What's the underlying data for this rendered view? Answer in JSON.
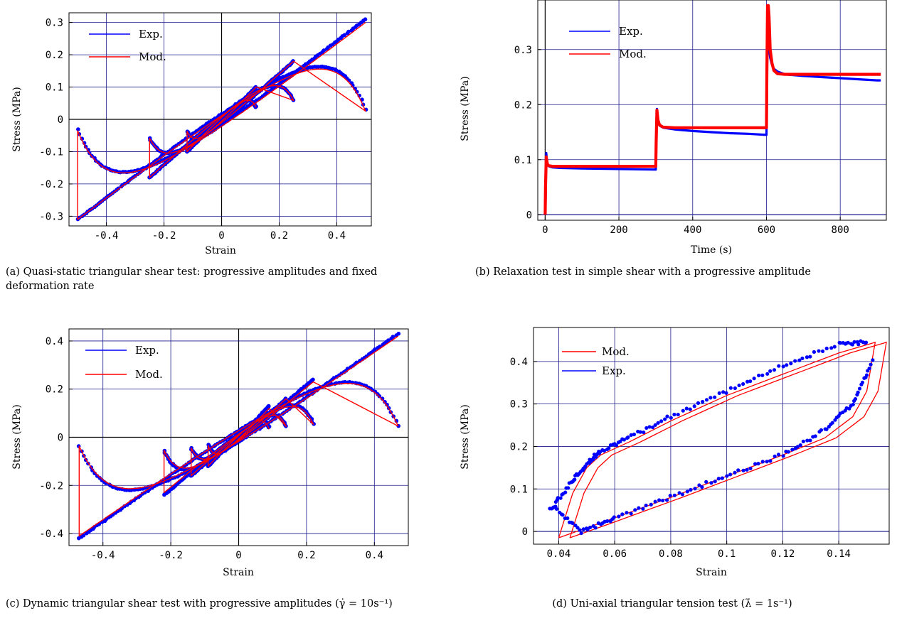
{
  "colors": {
    "experimental": "#0000ff",
    "model": "#ff0000",
    "grid": "#1a1a8c",
    "zero_line": "#000000"
  },
  "captions": {
    "a": "(a) Quasi-static triangular shear test: progressive amplitudes and fixed deformation rate",
    "b": "(b) Relaxation test in simple shear with a progressive amplitude",
    "c": "(c) Dynamic triangular shear test with progressive amplitudes (γ̇ = 10s⁻¹)",
    "d": "(d) Uni-axial triangular tension test (λ̇ = 1s⁻¹)"
  },
  "chart_data": [
    {
      "id": "a",
      "type": "scatter",
      "xlabel": "Strain",
      "ylabel": "Stress (MPa)",
      "xlim": [
        -0.53,
        0.52
      ],
      "ylim": [
        -0.33,
        0.33
      ],
      "xticks": [
        -0.4,
        -0.2,
        0,
        0.2,
        0.4
      ],
      "xtick_labels": [
        "-0.4",
        "-0.2",
        "0",
        "0.2",
        "0.4"
      ],
      "yticks": [
        -0.3,
        -0.2,
        -0.1,
        0,
        0.1,
        0.2,
        0.3
      ],
      "ytick_labels": [
        "-0.3",
        "-0.2",
        "-0.1",
        "0",
        "0.1",
        "0.2",
        "0.3"
      ],
      "grid": true,
      "legend_position": "top-left",
      "series": [
        {
          "name": "Exp.",
          "style": "points",
          "color": "#0000ff",
          "loops": [
            {
              "amp": 0.12,
              "ymax": 0.1,
              "ymin": -0.1,
              "xf": 0.0,
              "sf": 0.7
            },
            {
              "amp": 0.25,
              "ymax": 0.18,
              "ymin": -0.18,
              "xf": 0.04,
              "sf": 0.75
            },
            {
              "amp": 0.5,
              "ymax": 0.31,
              "ymin": -0.31,
              "xf": 0.05,
              "sf": 1.0
            }
          ]
        },
        {
          "name": "Mod.",
          "style": "line",
          "color": "#ff0000",
          "loops": [
            {
              "amp": 0.12,
              "ymax": 0.1,
              "ymin": -0.1,
              "xf": 0.0,
              "sf": 0.7
            },
            {
              "amp": 0.25,
              "ymax": 0.18,
              "ymin": -0.18,
              "xf": 0.04,
              "sf": 0.75
            },
            {
              "amp": 0.5,
              "ymax": 0.3,
              "ymin": -0.31,
              "xf": 0.05,
              "sf": 1.0
            }
          ]
        }
      ]
    },
    {
      "id": "b",
      "type": "line",
      "xlabel": "Time (s)",
      "ylabel": "Stress (MPa)",
      "xlim": [
        -20,
        925
      ],
      "ylim": [
        -0.01,
        0.39
      ],
      "xticks": [
        0,
        200,
        400,
        600,
        800
      ],
      "xtick_labels": [
        "0",
        "200",
        "400",
        "600",
        "800"
      ],
      "yticks": [
        0,
        0.1,
        0.2,
        0.3
      ],
      "ytick_labels": [
        "0",
        "0.1",
        "0.2",
        "0.3"
      ],
      "grid": true,
      "legend_position": "top-left",
      "series": [
        {
          "name": "Exp.",
          "style": "thick",
          "color": "#0000ff",
          "x": [
            0,
            1,
            3,
            5,
            10,
            20,
            40,
            100,
            200,
            300,
            301,
            303,
            306,
            310,
            320,
            350,
            400,
            450,
            500,
            550,
            600,
            601,
            603,
            606,
            610,
            615,
            620,
            630,
            650,
            700,
            750,
            800,
            850,
            900,
            910
          ],
          "y": [
            0.0,
            0.02,
            0.112,
            0.095,
            0.088,
            0.086,
            0.085,
            0.084,
            0.083,
            0.082,
            0.12,
            0.192,
            0.172,
            0.162,
            0.158,
            0.155,
            0.152,
            0.15,
            0.148,
            0.147,
            0.145,
            0.22,
            0.34,
            0.31,
            0.285,
            0.272,
            0.265,
            0.26,
            0.255,
            0.252,
            0.25,
            0.248,
            0.246,
            0.244,
            0.244
          ]
        },
        {
          "name": "Mod.",
          "style": "thick",
          "color": "#ff0000",
          "x": [
            0,
            1,
            3,
            6,
            10,
            20,
            100,
            200,
            300,
            301,
            303,
            306,
            310,
            320,
            350,
            400,
            500,
            600,
            601,
            603,
            605,
            607,
            610,
            615,
            620,
            630,
            650,
            700,
            800,
            910
          ],
          "y": [
            0.0,
            0.05,
            0.105,
            0.092,
            0.089,
            0.088,
            0.088,
            0.088,
            0.088,
            0.13,
            0.19,
            0.172,
            0.163,
            0.159,
            0.158,
            0.158,
            0.158,
            0.158,
            0.25,
            0.38,
            0.38,
            0.36,
            0.3,
            0.275,
            0.262,
            0.256,
            0.255,
            0.255,
            0.255,
            0.255
          ]
        }
      ]
    },
    {
      "id": "c",
      "type": "scatter",
      "xlabel": "Strain",
      "ylabel": "Stress (MPa)",
      "xlim": [
        -0.5,
        0.5
      ],
      "ylim": [
        -0.45,
        0.45
      ],
      "xticks": [
        -0.4,
        -0.2,
        0,
        0.2,
        0.4
      ],
      "xtick_labels": [
        "-0.4",
        "-0.2",
        "0",
        "0.2",
        "0.4"
      ],
      "yticks": [
        -0.4,
        -0.2,
        0,
        0.2,
        0.4
      ],
      "ytick_labels": [
        "-0.4",
        "-0.2",
        "0",
        "0.2",
        "0.4"
      ],
      "grid": true,
      "legend_position": "top-left",
      "series": [
        {
          "name": "Exp.",
          "style": "points",
          "color": "#0000ff",
          "loops": [
            {
              "amp": 0.09,
              "ymax": 0.13,
              "ymin": -0.12,
              "xf": 0.0,
              "sf": 0.8
            },
            {
              "amp": 0.14,
              "ymax": 0.16,
              "ymin": -0.16,
              "xf": 0.03,
              "sf": 0.8
            },
            {
              "amp": 0.22,
              "ymax": 0.24,
              "ymin": -0.24,
              "xf": 0.05,
              "sf": 0.85
            },
            {
              "amp": 0.47,
              "ymax": 0.43,
              "ymin": -0.42,
              "xf": 0.05,
              "sf": 1.0
            }
          ]
        },
        {
          "name": "Mod.",
          "style": "line",
          "color": "#ff0000",
          "loops": [
            {
              "amp": 0.09,
              "ymax": 0.12,
              "ymin": -0.12,
              "xf": 0.0,
              "sf": 0.8
            },
            {
              "amp": 0.14,
              "ymax": 0.16,
              "ymin": -0.16,
              "xf": 0.03,
              "sf": 0.8
            },
            {
              "amp": 0.22,
              "ymax": 0.23,
              "ymin": -0.23,
              "xf": 0.05,
              "sf": 0.85
            },
            {
              "amp": 0.47,
              "ymax": 0.42,
              "ymin": -0.41,
              "xf": 0.05,
              "sf": 1.0
            }
          ]
        }
      ]
    },
    {
      "id": "d",
      "type": "scatter",
      "xlabel": "Strain",
      "ylabel": "Stress (MPa)",
      "xlim": [
        0.031,
        0.158
      ],
      "ylim": [
        -0.03,
        0.48
      ],
      "xticks": [
        0.04,
        0.06,
        0.08,
        0.1,
        0.12,
        0.14
      ],
      "xtick_labels": [
        "0.04",
        "0.06",
        "0.08",
        "0.1",
        "0.12",
        "0.14"
      ],
      "yticks": [
        0,
        0.1,
        0.2,
        0.3,
        0.4
      ],
      "ytick_labels": [
        "0",
        "0.1",
        "0.2",
        "0.3",
        "0.4"
      ],
      "grid": true,
      "legend_position": "top-left",
      "series": [
        {
          "name": "Mod.",
          "style": "line",
          "color": "#ff0000",
          "upper": [
            [
              0.04,
              -0.015
            ],
            [
              0.045,
              0.09
            ],
            [
              0.05,
              0.15
            ],
            [
              0.055,
              0.18
            ],
            [
              0.065,
              0.21
            ],
            [
              0.08,
              0.26
            ],
            [
              0.1,
              0.32
            ],
            [
              0.12,
              0.37
            ],
            [
              0.14,
              0.42
            ],
            [
              0.153,
              0.445
            ]
          ],
          "lower": [
            [
              0.04,
              -0.015
            ],
            [
              0.055,
              0.02
            ],
            [
              0.08,
              0.08
            ],
            [
              0.1,
              0.13
            ],
            [
              0.12,
              0.18
            ],
            [
              0.135,
              0.22
            ],
            [
              0.145,
              0.27
            ],
            [
              0.15,
              0.33
            ],
            [
              0.153,
              0.445
            ]
          ]
        },
        {
          "name": "Exp.",
          "style": "points",
          "color": "#0000ff",
          "upper": [
            [
              0.037,
              0.05
            ],
            [
              0.045,
              0.12
            ],
            [
              0.05,
              0.16
            ],
            [
              0.055,
              0.19
            ],
            [
              0.065,
              0.22
            ],
            [
              0.08,
              0.27
            ],
            [
              0.1,
              0.33
            ],
            [
              0.12,
              0.39
            ],
            [
              0.14,
              0.44
            ],
            [
              0.15,
              0.445
            ]
          ],
          "lower": [
            [
              0.038,
              0.06
            ],
            [
              0.048,
              0.0
            ],
            [
              0.06,
              0.03
            ],
            [
              0.08,
              0.08
            ],
            [
              0.1,
              0.13
            ],
            [
              0.12,
              0.18
            ],
            [
              0.135,
              0.24
            ],
            [
              0.145,
              0.3
            ],
            [
              0.152,
              0.4
            ]
          ]
        }
      ]
    }
  ]
}
